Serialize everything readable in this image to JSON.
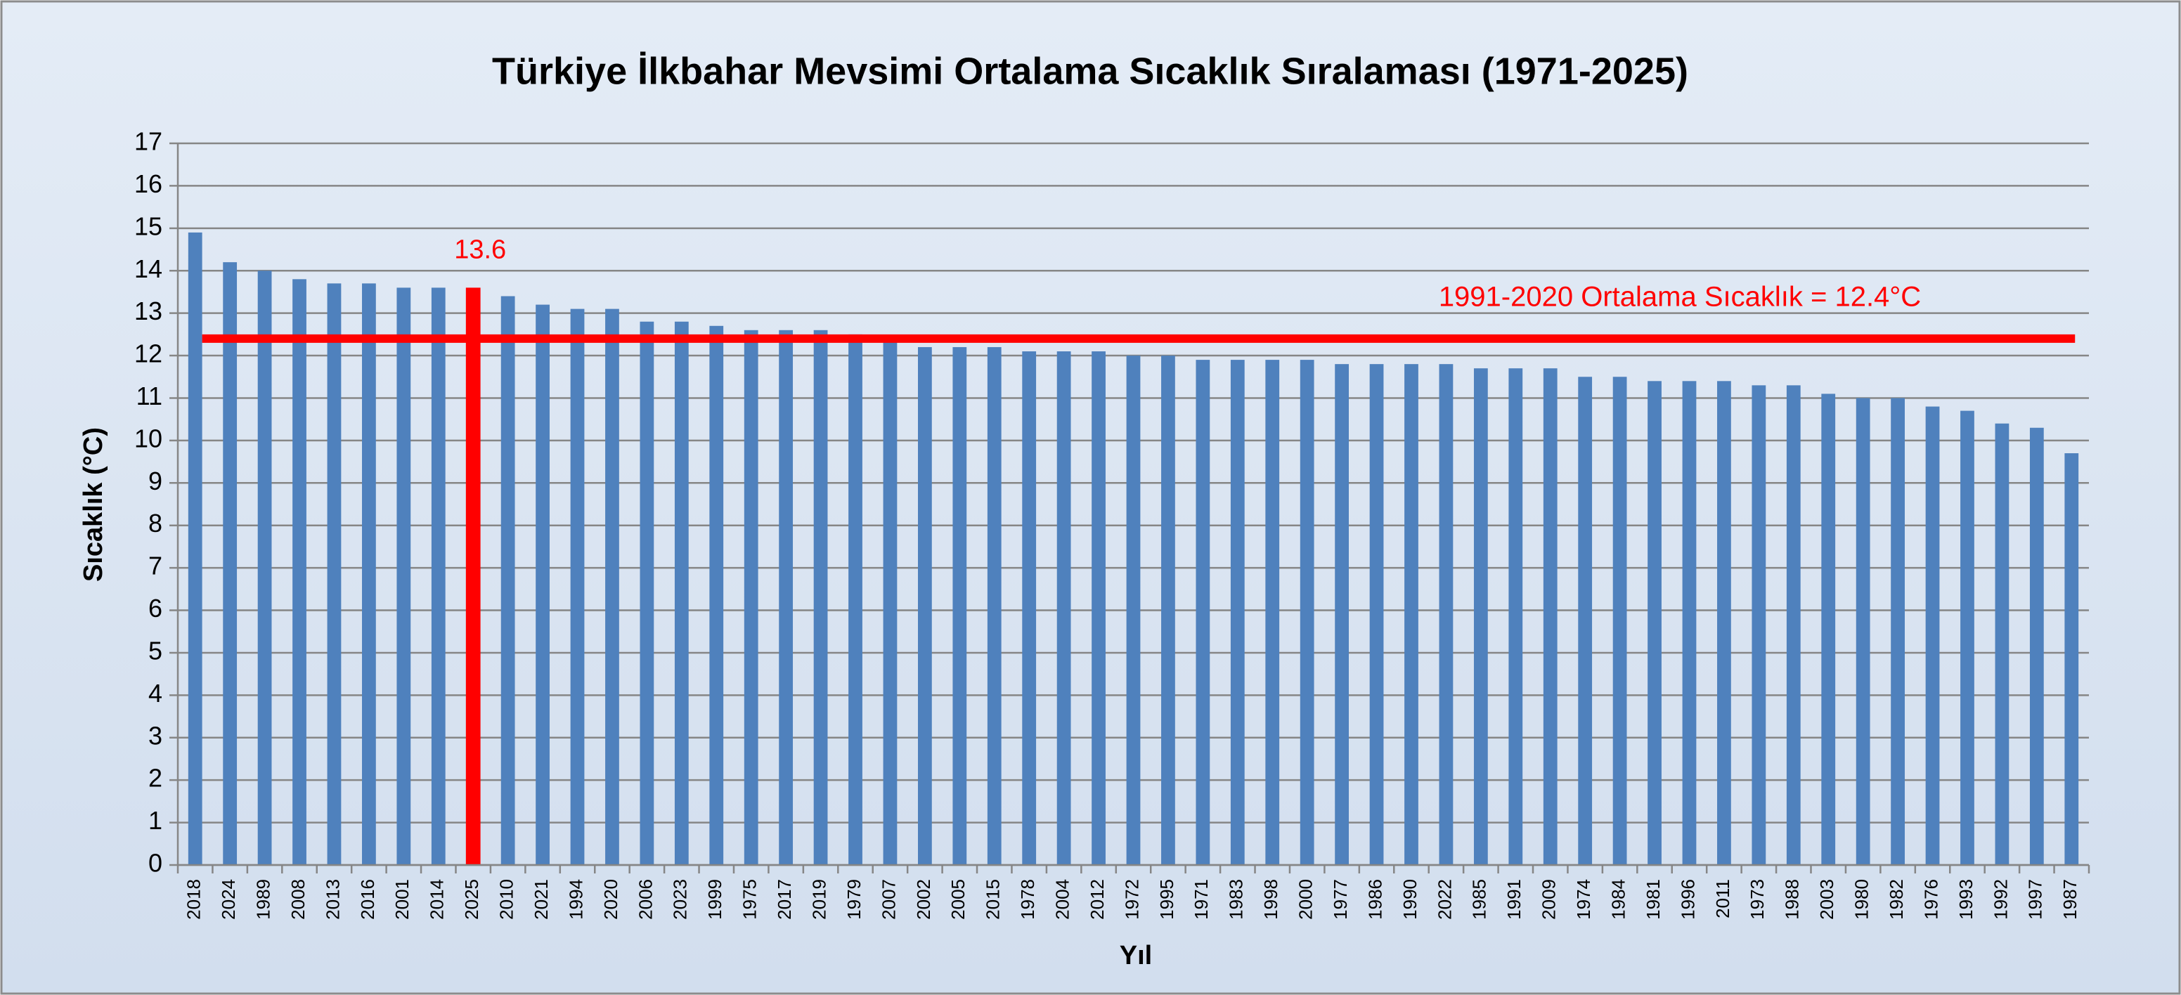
{
  "chart_data": {
    "type": "bar",
    "title": "Türkiye İlkbahar Mevsimi Ortalama Sıcaklık Sıralaması (1971-2025)",
    "x_label": "Yıl",
    "y_label": "Sıcaklık (°C)",
    "categories": [
      "2018",
      "2024",
      "1989",
      "2008",
      "2013",
      "2016",
      "2001",
      "2014",
      "2025",
      "2010",
      "2021",
      "1994",
      "2020",
      "2006",
      "2023",
      "1999",
      "1975",
      "2017",
      "2019",
      "1979",
      "2007",
      "2002",
      "2005",
      "2015",
      "1978",
      "2004",
      "2012",
      "1972",
      "1995",
      "1971",
      "1983",
      "1998",
      "2000",
      "1977",
      "1986",
      "1990",
      "2022",
      "1985",
      "1991",
      "2009",
      "1974",
      "1984",
      "1981",
      "1996",
      "2011",
      "1973",
      "1988",
      "2003",
      "1980",
      "1982",
      "1976",
      "1993",
      "1992",
      "1997",
      "1987"
    ],
    "values": [
      14.9,
      14.2,
      14.0,
      13.8,
      13.7,
      13.7,
      13.6,
      13.6,
      13.6,
      13.4,
      13.2,
      13.1,
      13.1,
      12.8,
      12.8,
      12.7,
      12.6,
      12.6,
      12.6,
      12.5,
      12.4,
      12.2,
      12.2,
      12.2,
      12.1,
      12.1,
      12.1,
      12.0,
      12.0,
      11.9,
      11.9,
      11.9,
      11.9,
      11.8,
      11.8,
      11.8,
      11.8,
      11.7,
      11.7,
      11.7,
      11.5,
      11.5,
      11.4,
      11.4,
      11.4,
      11.3,
      11.3,
      11.1,
      11.0,
      11.0,
      10.8,
      10.7,
      10.4,
      10.3,
      9.7
    ],
    "color": "#4f81bd",
    "highlight_category": "2025",
    "highlight_color": "#ff0000",
    "reference_line": {
      "value": 12.4,
      "label": "1991-2020 Ortalama Sıcaklık = 12.4°C",
      "color": "#ff0000"
    },
    "ylim": [
      0,
      17
    ],
    "yticks": [
      0,
      1,
      2,
      3,
      4,
      5,
      6,
      7,
      8,
      9,
      10,
      11,
      12,
      13,
      14,
      15,
      16,
      17
    ],
    "grid": true
  }
}
